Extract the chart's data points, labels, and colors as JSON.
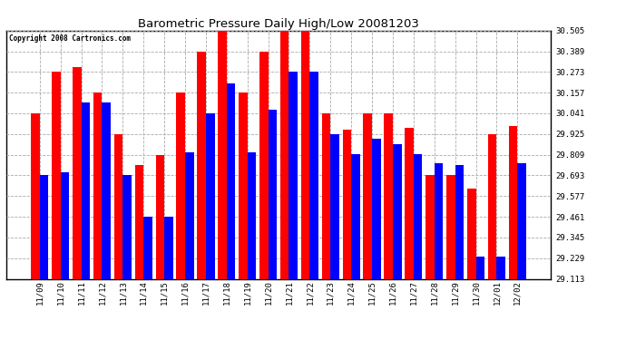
{
  "title": "Barometric Pressure Daily High/Low 20081203",
  "copyright": "Copyright 2008 Cartronics.com",
  "background_color": "#ffffff",
  "plot_bg_color": "#ffffff",
  "grid_color": "#aaaaaa",
  "bar_color_high": "#ff0000",
  "bar_color_low": "#0000ff",
  "ylim": [
    29.113,
    30.505
  ],
  "yticks": [
    29.113,
    29.229,
    29.345,
    29.461,
    29.577,
    29.693,
    29.809,
    29.925,
    30.041,
    30.157,
    30.273,
    30.389,
    30.505
  ],
  "dates": [
    "11/09",
    "11/10",
    "11/11",
    "11/12",
    "11/13",
    "11/14",
    "11/15",
    "11/16",
    "11/17",
    "11/18",
    "11/19",
    "11/20",
    "11/21",
    "11/22",
    "11/23",
    "11/24",
    "11/25",
    "11/26",
    "11/27",
    "11/28",
    "11/29",
    "11/30",
    "12/01",
    "12/02"
  ],
  "highs": [
    30.041,
    30.273,
    30.3,
    30.157,
    29.925,
    29.75,
    29.809,
    30.157,
    30.389,
    30.505,
    30.157,
    30.389,
    30.505,
    30.505,
    30.041,
    29.95,
    30.041,
    30.041,
    29.96,
    29.693,
    29.693,
    29.62,
    29.925,
    29.97
  ],
  "lows": [
    29.693,
    29.71,
    30.1,
    30.1,
    29.693,
    29.461,
    29.461,
    29.82,
    30.041,
    30.21,
    29.82,
    30.06,
    30.273,
    30.273,
    29.925,
    29.81,
    29.9,
    29.87,
    29.81,
    29.76,
    29.75,
    29.24,
    29.24,
    29.76
  ],
  "figsize": [
    6.9,
    3.75
  ],
  "dpi": 100
}
